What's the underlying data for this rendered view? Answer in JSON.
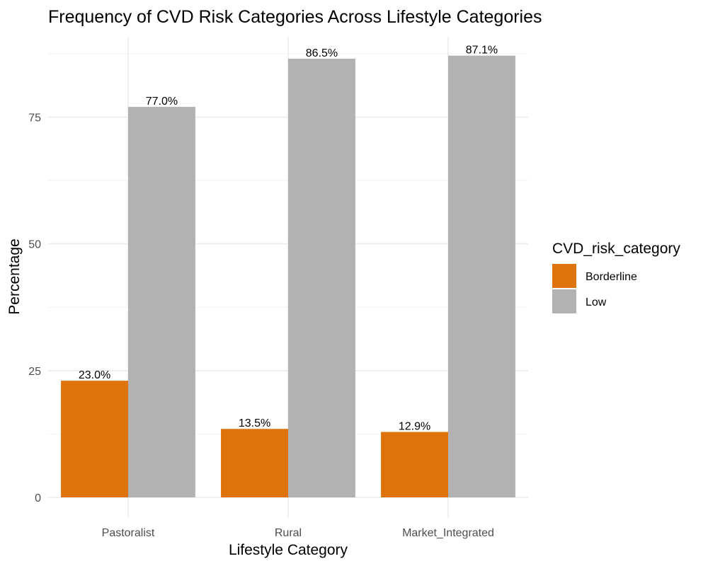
{
  "chart_data": {
    "type": "bar",
    "title": "Frequency of CVD Risk Categories Across Lifestyle Categories",
    "xlabel": "Lifestyle Category",
    "ylabel": "Percentage",
    "categories": [
      "Pastoralist",
      "Rural",
      "Market_Integrated"
    ],
    "series": [
      {
        "name": "Borderline",
        "color": "#dd730a",
        "values": [
          23.0,
          13.5,
          12.9
        ],
        "labels": [
          "23.0%",
          "13.5%",
          "12.9%"
        ]
      },
      {
        "name": "Low",
        "color": "#b2b2b2",
        "values": [
          77.0,
          86.5,
          87.1
        ],
        "labels": [
          "77.0%",
          "86.5%",
          "87.1%"
        ]
      }
    ],
    "ylim": [
      0,
      90
    ],
    "yticks": [
      0,
      25,
      50,
      75
    ],
    "ytick_labels": [
      "0",
      "25",
      "50",
      "75"
    ],
    "grid": true,
    "legend": {
      "title": "CVD_risk_category",
      "position": "right"
    }
  }
}
